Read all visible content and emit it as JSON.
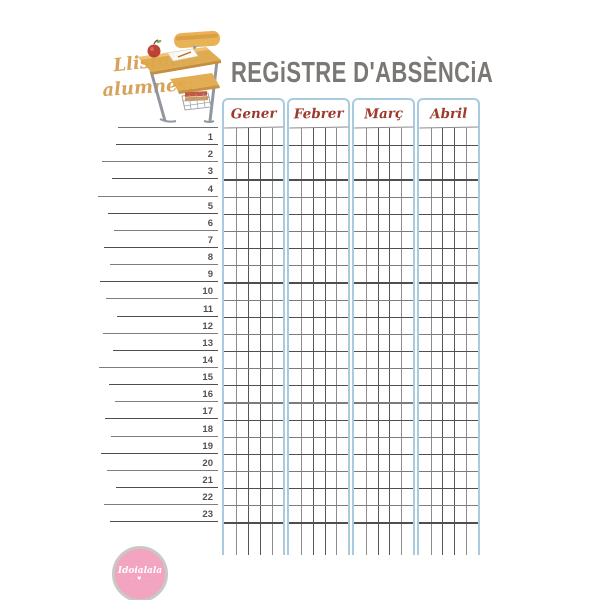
{
  "header": {
    "list_label_line1": "Llistat",
    "list_label_line2": "alumnes:",
    "title": "REGiSTRE D'ABSÈNCiA"
  },
  "table": {
    "months": [
      "Gener",
      "Febrer",
      "Març",
      "Abril"
    ],
    "columns_per_month": 5,
    "row_numbers": [
      1,
      2,
      3,
      4,
      5,
      6,
      7,
      8,
      9,
      10,
      11,
      12,
      13,
      14,
      15,
      16,
      17,
      18,
      19,
      20,
      21,
      22,
      23
    ]
  },
  "footer_logo": {
    "brand_text": "Idoialala",
    "sub_text": "· ♥ ·"
  },
  "icons": {
    "desk_illustration": "school-desk-with-apple-icon",
    "logo_badge": "round-brand-stamp-icon"
  },
  "colors": {
    "accent_blue": "#a9cbdf",
    "month_red": "#9c3a2c",
    "gold_script": "#d7a259",
    "title_gray": "#7a7774",
    "line_dark": "#4f4f4f",
    "logo_pink": "#f2a4c1"
  }
}
